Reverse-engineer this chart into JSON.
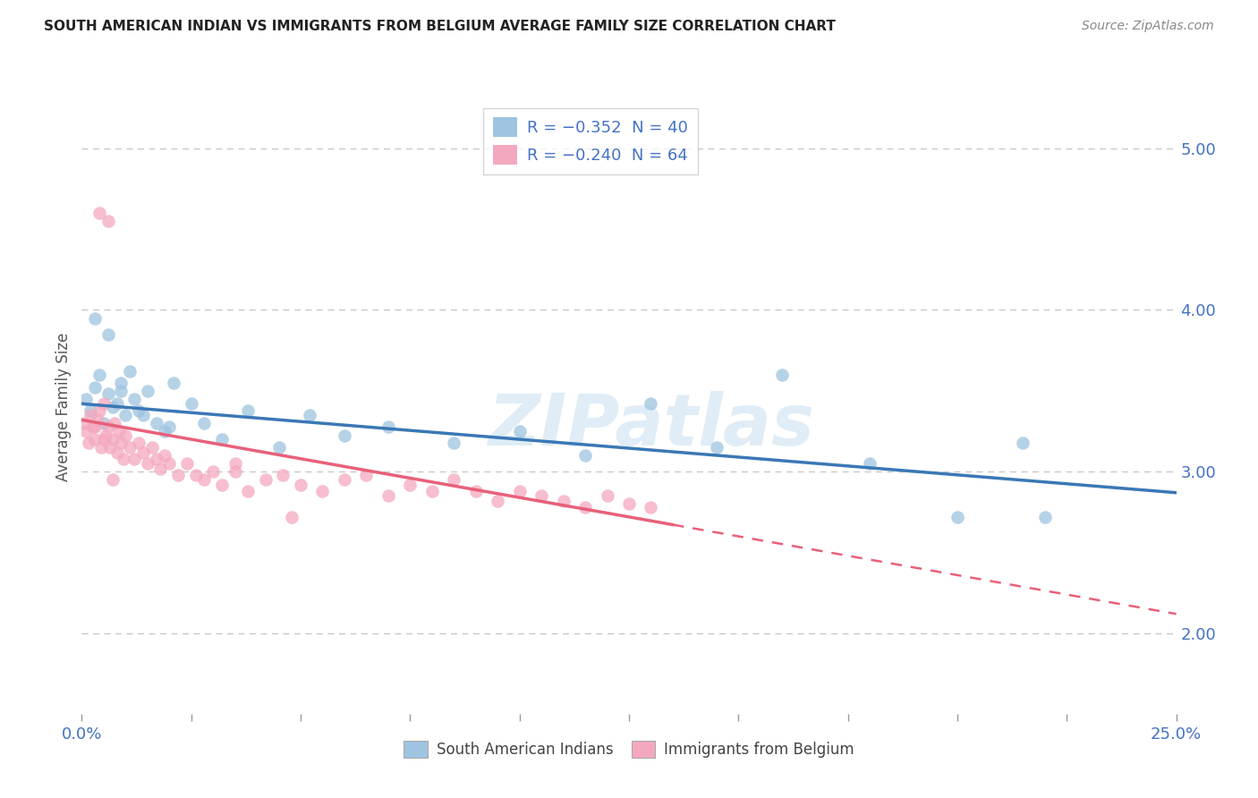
{
  "title": "SOUTH AMERICAN INDIAN VS IMMIGRANTS FROM BELGIUM AVERAGE FAMILY SIZE CORRELATION CHART",
  "source": "Source: ZipAtlas.com",
  "ylabel": "Average Family Size",
  "xmin": 0.0,
  "xmax": 25.0,
  "ymin": 1.5,
  "ymax": 5.3,
  "yticks_right": [
    2.0,
    3.0,
    4.0,
    5.0
  ],
  "watermark": "ZIPatlas",
  "legend_label_blue": "R = −0.352  N = 40",
  "legend_label_pink": "R = −0.240  N = 64",
  "bottom_legend_blue": "South American Indians",
  "bottom_legend_pink": "Immigrants from Belgium",
  "blue_color": "#9ec4e0",
  "pink_color": "#f4a8be",
  "blue_line_color": "#3a78b5",
  "pink_line_color": "#e8607a",
  "grid_color": "#c8c8c8",
  "background_color": "#ffffff",
  "title_color": "#222222",
  "axis_label_color": "#4472c4",
  "watermark_color": "#c8dff0",
  "blue_intercept": 3.42,
  "blue_slope": -0.022,
  "pink_intercept": 3.32,
  "pink_slope": -0.048,
  "pink_solid_end": 13.5,
  "pink_dash_end": 25.0,
  "blue_scatter_x": [
    0.1,
    0.2,
    0.3,
    0.4,
    0.5,
    0.6,
    0.7,
    0.8,
    0.9,
    1.0,
    1.1,
    1.2,
    1.3,
    1.5,
    1.7,
    1.9,
    2.1,
    2.5,
    2.8,
    3.2,
    3.8,
    4.5,
    5.2,
    6.0,
    7.0,
    8.5,
    10.0,
    11.5,
    13.0,
    14.5,
    16.0,
    18.0,
    20.0,
    21.5,
    0.3,
    0.6,
    0.9,
    1.4,
    2.0,
    22.0
  ],
  "blue_scatter_y": [
    3.45,
    3.38,
    3.52,
    3.6,
    3.3,
    3.48,
    3.4,
    3.42,
    3.55,
    3.35,
    3.62,
    3.45,
    3.38,
    3.5,
    3.3,
    3.25,
    3.55,
    3.42,
    3.3,
    3.2,
    3.38,
    3.15,
    3.35,
    3.22,
    3.28,
    3.18,
    3.25,
    3.1,
    3.42,
    3.15,
    3.6,
    3.05,
    2.72,
    3.18,
    3.95,
    3.85,
    3.5,
    3.35,
    3.28,
    2.72
  ],
  "pink_scatter_x": [
    0.05,
    0.1,
    0.15,
    0.2,
    0.25,
    0.3,
    0.35,
    0.4,
    0.45,
    0.5,
    0.55,
    0.6,
    0.65,
    0.7,
    0.75,
    0.8,
    0.85,
    0.9,
    0.95,
    1.0,
    1.1,
    1.2,
    1.3,
    1.4,
    1.5,
    1.6,
    1.7,
    1.8,
    1.9,
    2.0,
    2.2,
    2.4,
    2.6,
    2.8,
    3.0,
    3.2,
    3.5,
    3.8,
    4.2,
    4.6,
    5.0,
    5.5,
    6.0,
    6.5,
    7.0,
    7.5,
    8.0,
    8.5,
    9.0,
    9.5,
    10.0,
    10.5,
    11.0,
    11.5,
    12.0,
    12.5,
    13.0,
    0.3,
    0.5,
    0.7,
    0.4,
    0.6,
    3.5,
    4.8
  ],
  "pink_scatter_y": [
    3.3,
    3.25,
    3.18,
    3.35,
    3.28,
    3.2,
    3.32,
    3.38,
    3.15,
    3.42,
    3.22,
    3.28,
    3.15,
    3.2,
    3.3,
    3.12,
    3.25,
    3.18,
    3.08,
    3.22,
    3.15,
    3.08,
    3.18,
    3.12,
    3.05,
    3.15,
    3.08,
    3.02,
    3.1,
    3.05,
    2.98,
    3.05,
    2.98,
    2.95,
    3.0,
    2.92,
    3.05,
    2.88,
    2.95,
    2.98,
    2.92,
    2.88,
    2.95,
    2.98,
    2.85,
    2.92,
    2.88,
    2.95,
    2.88,
    2.82,
    2.88,
    2.85,
    2.82,
    2.78,
    2.85,
    2.8,
    2.78,
    3.28,
    3.2,
    2.95,
    4.6,
    4.55,
    3.0,
    2.72
  ],
  "xticks": [
    0,
    2.5,
    5.0,
    7.5,
    10.0,
    12.5,
    15.0,
    17.5,
    20.0,
    22.5,
    25.0
  ],
  "xlabels_show": {
    "0": "0.0%",
    "25.0": "25.0%"
  }
}
